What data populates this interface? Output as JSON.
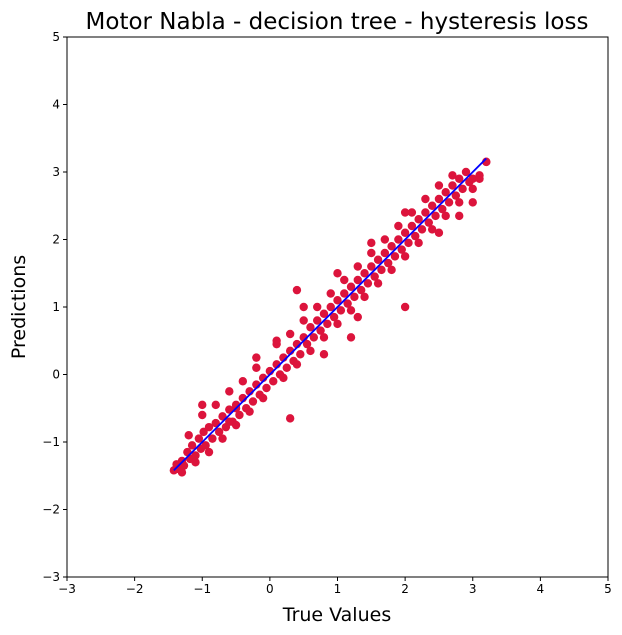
{
  "chart_data": {
    "type": "scatter",
    "title": "Motor Nabla - decision tree - hysteresis loss",
    "xlabel": "True Values",
    "ylabel": "Predictions",
    "xlim": [
      -3,
      5
    ],
    "ylim": [
      -3,
      5
    ],
    "xticks": [
      "−3",
      "−2",
      "−1",
      "0",
      "1",
      "2",
      "3",
      "4",
      "5"
    ],
    "yticks": [
      "−3",
      "−2",
      "−1",
      "0",
      "1",
      "2",
      "3",
      "4",
      "5"
    ],
    "grid": false,
    "legend": "none",
    "scatter_color": "#dc143c",
    "line_color": "#0000ff",
    "fit_line": {
      "x": [
        -1.42,
        3.2
      ],
      "y": [
        -1.42,
        3.2
      ]
    },
    "series": [
      {
        "x": [
          -1.42,
          -1.38,
          -1.35,
          -1.3,
          -1.27,
          -1.22,
          -1.18,
          -1.15,
          -1.1,
          -1.05,
          -1.02,
          -0.98,
          -0.95,
          -0.9,
          -0.85,
          -0.8,
          -0.75,
          -0.7,
          -0.65,
          -0.6,
          -0.55,
          -0.5,
          -0.45,
          -0.4,
          -0.35,
          -0.3,
          -0.25,
          -0.2,
          -0.15,
          -0.1,
          -0.05,
          0.0,
          0.05,
          0.1,
          0.15,
          0.2,
          0.25,
          0.3,
          0.35,
          0.4,
          0.45,
          0.5,
          0.55,
          0.6,
          0.65,
          0.7,
          0.75,
          0.8,
          0.85,
          0.9,
          0.95,
          1.0,
          1.05,
          1.1,
          1.15,
          1.2,
          1.25,
          1.3,
          1.35,
          1.4,
          1.45,
          1.5,
          1.55,
          1.6,
          1.65,
          1.7,
          1.75,
          1.8,
          1.85,
          1.9,
          1.95,
          2.0,
          2.05,
          2.1,
          2.15,
          2.2,
          2.25,
          2.3,
          2.35,
          2.4,
          2.45,
          2.5,
          2.55,
          2.6,
          2.65,
          2.7,
          2.75,
          2.8,
          2.85,
          2.9,
          2.95,
          3.0,
          3.1,
          3.2,
          -1.2,
          -1.0,
          -0.8,
          -0.6,
          -0.4,
          -0.2,
          0.1,
          0.3,
          0.5,
          0.7,
          0.9,
          1.1,
          1.3,
          1.5,
          1.7,
          1.9,
          2.1,
          2.3,
          2.5,
          2.7,
          -1.3,
          -1.1,
          -0.9,
          -0.7,
          -0.5,
          -0.3,
          -0.1,
          0.2,
          0.4,
          0.6,
          0.8,
          1.0,
          1.2,
          1.4,
          1.6,
          1.8,
          2.0,
          2.2,
          2.4,
          2.6,
          2.8,
          3.0,
          -0.2,
          0.1,
          0.5,
          1.0,
          1.5,
          2.0,
          0.8,
          1.2,
          -0.5,
          0.3,
          2.0,
          2.5,
          2.8,
          3.0,
          3.1,
          3.2,
          -1.0,
          -0.6,
          0.4,
          1.3
        ],
        "y": [
          -1.42,
          -1.33,
          -1.4,
          -1.28,
          -1.35,
          -1.15,
          -1.25,
          -1.05,
          -1.2,
          -0.95,
          -1.1,
          -0.85,
          -1.05,
          -0.78,
          -0.95,
          -0.72,
          -0.85,
          -0.62,
          -0.78,
          -0.52,
          -0.7,
          -0.45,
          -0.6,
          -0.35,
          -0.5,
          -0.25,
          -0.4,
          -0.15,
          -0.3,
          -0.05,
          -0.2,
          0.05,
          -0.1,
          0.15,
          0.0,
          0.25,
          0.1,
          0.35,
          0.2,
          0.45,
          0.3,
          0.55,
          0.45,
          0.7,
          0.55,
          0.8,
          0.65,
          0.9,
          0.75,
          1.0,
          0.85,
          1.1,
          0.95,
          1.2,
          1.05,
          1.3,
          1.15,
          1.4,
          1.25,
          1.5,
          1.35,
          1.6,
          1.45,
          1.7,
          1.55,
          1.8,
          1.65,
          1.9,
          1.75,
          2.0,
          1.85,
          2.1,
          1.95,
          2.2,
          2.05,
          2.3,
          2.15,
          2.4,
          2.25,
          2.5,
          2.35,
          2.6,
          2.45,
          2.7,
          2.55,
          2.8,
          2.65,
          2.9,
          2.75,
          3.0,
          2.85,
          2.9,
          2.95,
          3.15,
          -0.9,
          -0.6,
          -0.45,
          -0.25,
          -0.1,
          0.1,
          0.45,
          0.6,
          0.8,
          1.0,
          1.2,
          1.4,
          1.6,
          1.8,
          2.0,
          2.2,
          2.4,
          2.6,
          2.8,
          2.95,
          -1.45,
          -1.3,
          -1.15,
          -0.95,
          -0.75,
          -0.55,
          -0.35,
          -0.05,
          0.15,
          0.35,
          0.55,
          0.75,
          0.95,
          1.15,
          1.35,
          1.55,
          1.75,
          1.95,
          2.15,
          2.35,
          2.55,
          2.75,
          0.25,
          0.5,
          1.0,
          1.5,
          1.95,
          2.4,
          0.3,
          0.55,
          -0.5,
          -0.65,
          1.0,
          2.1,
          2.35,
          2.55,
          2.9,
          3.15,
          -0.45,
          -0.7,
          1.25,
          0.85
        ]
      }
    ]
  }
}
